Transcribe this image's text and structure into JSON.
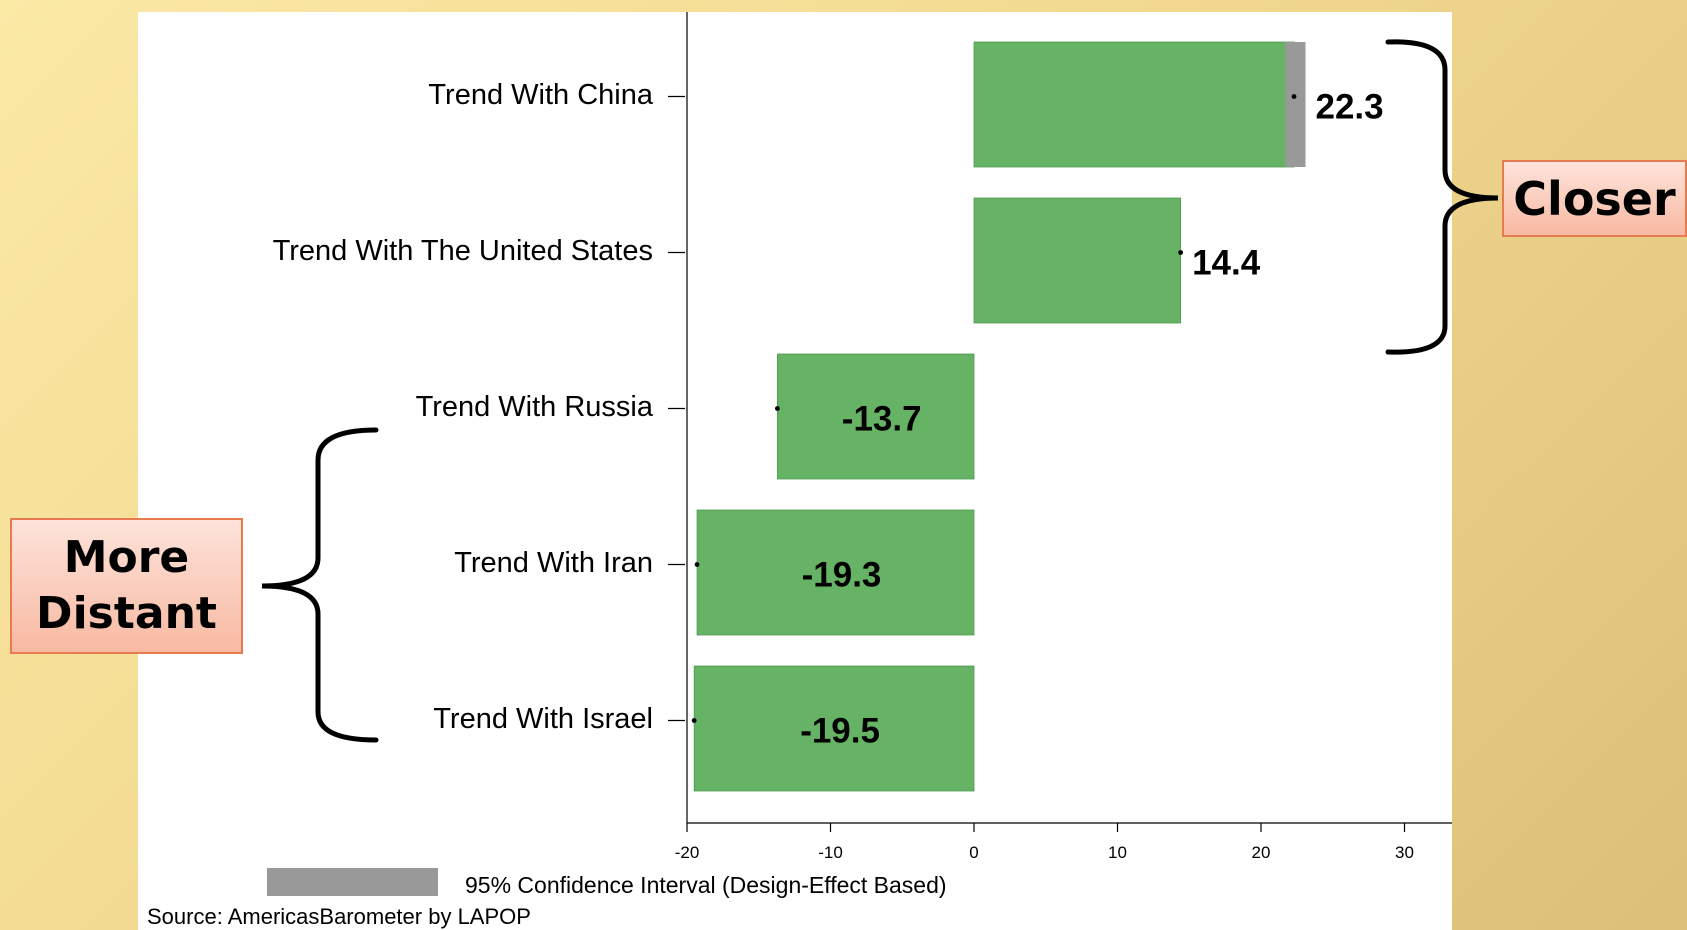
{
  "chart_data": {
    "type": "bar",
    "orientation": "horizontal",
    "categories": [
      "Trend With China",
      "Trend With The United States",
      "Trend With Russia",
      "Trend With Iran",
      "Trend With Israel"
    ],
    "values": [
      22.3,
      14.4,
      -13.7,
      -19.3,
      -19.5
    ],
    "ci_low": [
      21.7,
      14.3,
      -13.8,
      -19.4,
      -19.6
    ],
    "ci_high": [
      23.1,
      14.5,
      -13.6,
      -19.2,
      -19.4
    ],
    "value_labels": [
      "22.3",
      "14.4",
      "-13.7",
      "-19.3",
      "-19.5"
    ],
    "xlim": [
      -20,
      33
    ],
    "x_ticks": [
      -20,
      -10,
      0,
      10,
      20,
      30
    ],
    "x_tick_labels": [
      "-20",
      "-10",
      "0",
      "10",
      "20",
      "30"
    ],
    "title": "",
    "xlabel": "",
    "ylabel": "",
    "grid": false,
    "bar_color": "#66b366",
    "ci_color": "#999999",
    "legend": {
      "label": "95% Confidence Interval (Design-Effect Based)",
      "position": "bottom-left"
    },
    "source": "Source: AmericasBarometer by LAPOP"
  },
  "annotations": {
    "closer": "Closer",
    "more_distant": "More\nDistant"
  }
}
